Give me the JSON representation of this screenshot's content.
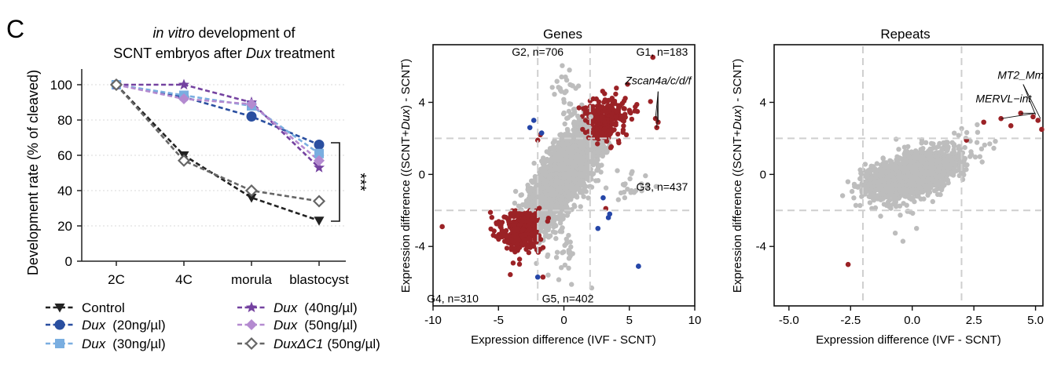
{
  "panel_letter": "C",
  "chart_data": [
    {
      "type": "line",
      "title_italic": "in vitro",
      "title_line1_rest": " development of",
      "title_line2_pre": "SCNT embryos after ",
      "title_line2_italic": "Dux",
      "title_line2_post": " treatment",
      "xlabel": "",
      "ylabel": "Development rate (% of cleaved)",
      "categories": [
        "2C",
        "4C",
        "morula",
        "blastocyst"
      ],
      "ylim": [
        0,
        110
      ],
      "yticks": [
        0,
        20,
        40,
        60,
        80,
        100
      ],
      "significance": "***",
      "series": [
        {
          "name": "Control",
          "name_italic": "",
          "dose": "",
          "color": "#222222",
          "marker": "triangle-down",
          "values": [
            100,
            60,
            36,
            23
          ]
        },
        {
          "name": "Dux",
          "name_italic": "Dux",
          "dose": "(20ng/µl)",
          "color": "#2a4fa0",
          "marker": "circle",
          "values": [
            100,
            93,
            82,
            66
          ]
        },
        {
          "name": "Dux",
          "name_italic": "Dux",
          "dose": "(30ng/µl)",
          "color": "#7aaee0",
          "marker": "square",
          "values": [
            100,
            94,
            88,
            61
          ]
        },
        {
          "name": "Dux",
          "name_italic": "Dux",
          "dose": "(40ng/µl)",
          "color": "#7442a0",
          "marker": "star",
          "values": [
            100,
            100,
            90,
            53
          ]
        },
        {
          "name": "Dux",
          "name_italic": "Dux",
          "dose": "(50ng/µl)",
          "color": "#b48ad0",
          "marker": "diamond",
          "values": [
            100,
            92,
            89,
            57
          ]
        },
        {
          "name": "DuxΔC1",
          "name_italic": "DuxΔC1",
          "dose": "(50ng/µl)",
          "color": "#666666",
          "marker": "diamond-open",
          "values": [
            100,
            57,
            40,
            34
          ]
        }
      ]
    },
    {
      "type": "scatter",
      "title": "Genes",
      "xlabel": "Expression difference (IVF - SCNT)",
      "ylabel_pre": "Expression difference ((SCNT+",
      "ylabel_italic": "Dux",
      "ylabel_post": ") - SCNT)",
      "xlim": [
        -10,
        10
      ],
      "ylim": [
        -7.3,
        7.2
      ],
      "xticks": [
        -10,
        -5,
        0,
        5,
        10
      ],
      "yticks": [
        -4,
        0,
        4
      ],
      "thresholds": [
        -2,
        2
      ],
      "colors": {
        "background": "#bdbdbd",
        "up": "#9b2226",
        "down": "#2546a8"
      },
      "annotations": [
        {
          "text": "G1, n=183",
          "x": 7.5,
          "y": 6.6
        },
        {
          "text": "G2, n=706",
          "x": -2.0,
          "y": 6.6
        },
        {
          "text": "G3, n=437",
          "x": 7.5,
          "y": -0.9
        },
        {
          "text": "G4, n=310",
          "x": -8.5,
          "y": -7.1
        },
        {
          "text": "G5, n=402",
          "x": 0.3,
          "y": -7.1
        },
        {
          "text": "Zscan4a/c/d/f",
          "x": 7.2,
          "y": 5.0,
          "italic": true
        }
      ],
      "highlight_points": [
        [
          7.0,
          3.1
        ],
        [
          7.1,
          2.6
        ],
        [
          7.2,
          2.9
        ],
        [
          6.8,
          6.5
        ],
        [
          -9.3,
          -2.9
        ],
        [
          5.7,
          -5.1
        ],
        [
          -1.6,
          -5.7
        ],
        [
          -1.8,
          2.2
        ],
        [
          -2.0,
          1.9
        ],
        [
          3.2,
          -1.9
        ]
      ]
    },
    {
      "type": "scatter",
      "title": "Repeats",
      "xlabel": "Expression difference (IVF - SCNT)",
      "ylabel_pre": "Expression difference ((SCNT+",
      "ylabel_italic": "Dux",
      "ylabel_post": ") - SCNT)",
      "xlim": [
        -5.6,
        5.3
      ],
      "ylim": [
        -7.3,
        7.2
      ],
      "xticks": [
        -5.0,
        -2.5,
        0.0,
        2.5,
        5.0
      ],
      "xtick_labels": [
        "-5.0",
        "-2.5",
        "0.0",
        "2.5",
        "5.0"
      ],
      "yticks": [
        -4,
        0,
        4
      ],
      "thresholds": [
        -2,
        2
      ],
      "colors": {
        "background": "#bdbdbd",
        "up": "#9b2226"
      },
      "annotations": [
        {
          "text": "MT2_Mm",
          "x": 4.4,
          "y": 5.3,
          "italic": true
        },
        {
          "text": "MERVL−int",
          "x": 3.7,
          "y": 4.0,
          "italic": true
        }
      ],
      "highlight_points": [
        [
          2.9,
          2.9
        ],
        [
          3.6,
          3.1
        ],
        [
          4.4,
          3.4
        ],
        [
          4.9,
          3.2
        ],
        [
          5.1,
          3.0
        ],
        [
          5.25,
          2.5
        ],
        [
          4.0,
          2.7
        ],
        [
          2.2,
          1.9
        ],
        [
          -2.6,
          -5.0
        ]
      ]
    }
  ]
}
